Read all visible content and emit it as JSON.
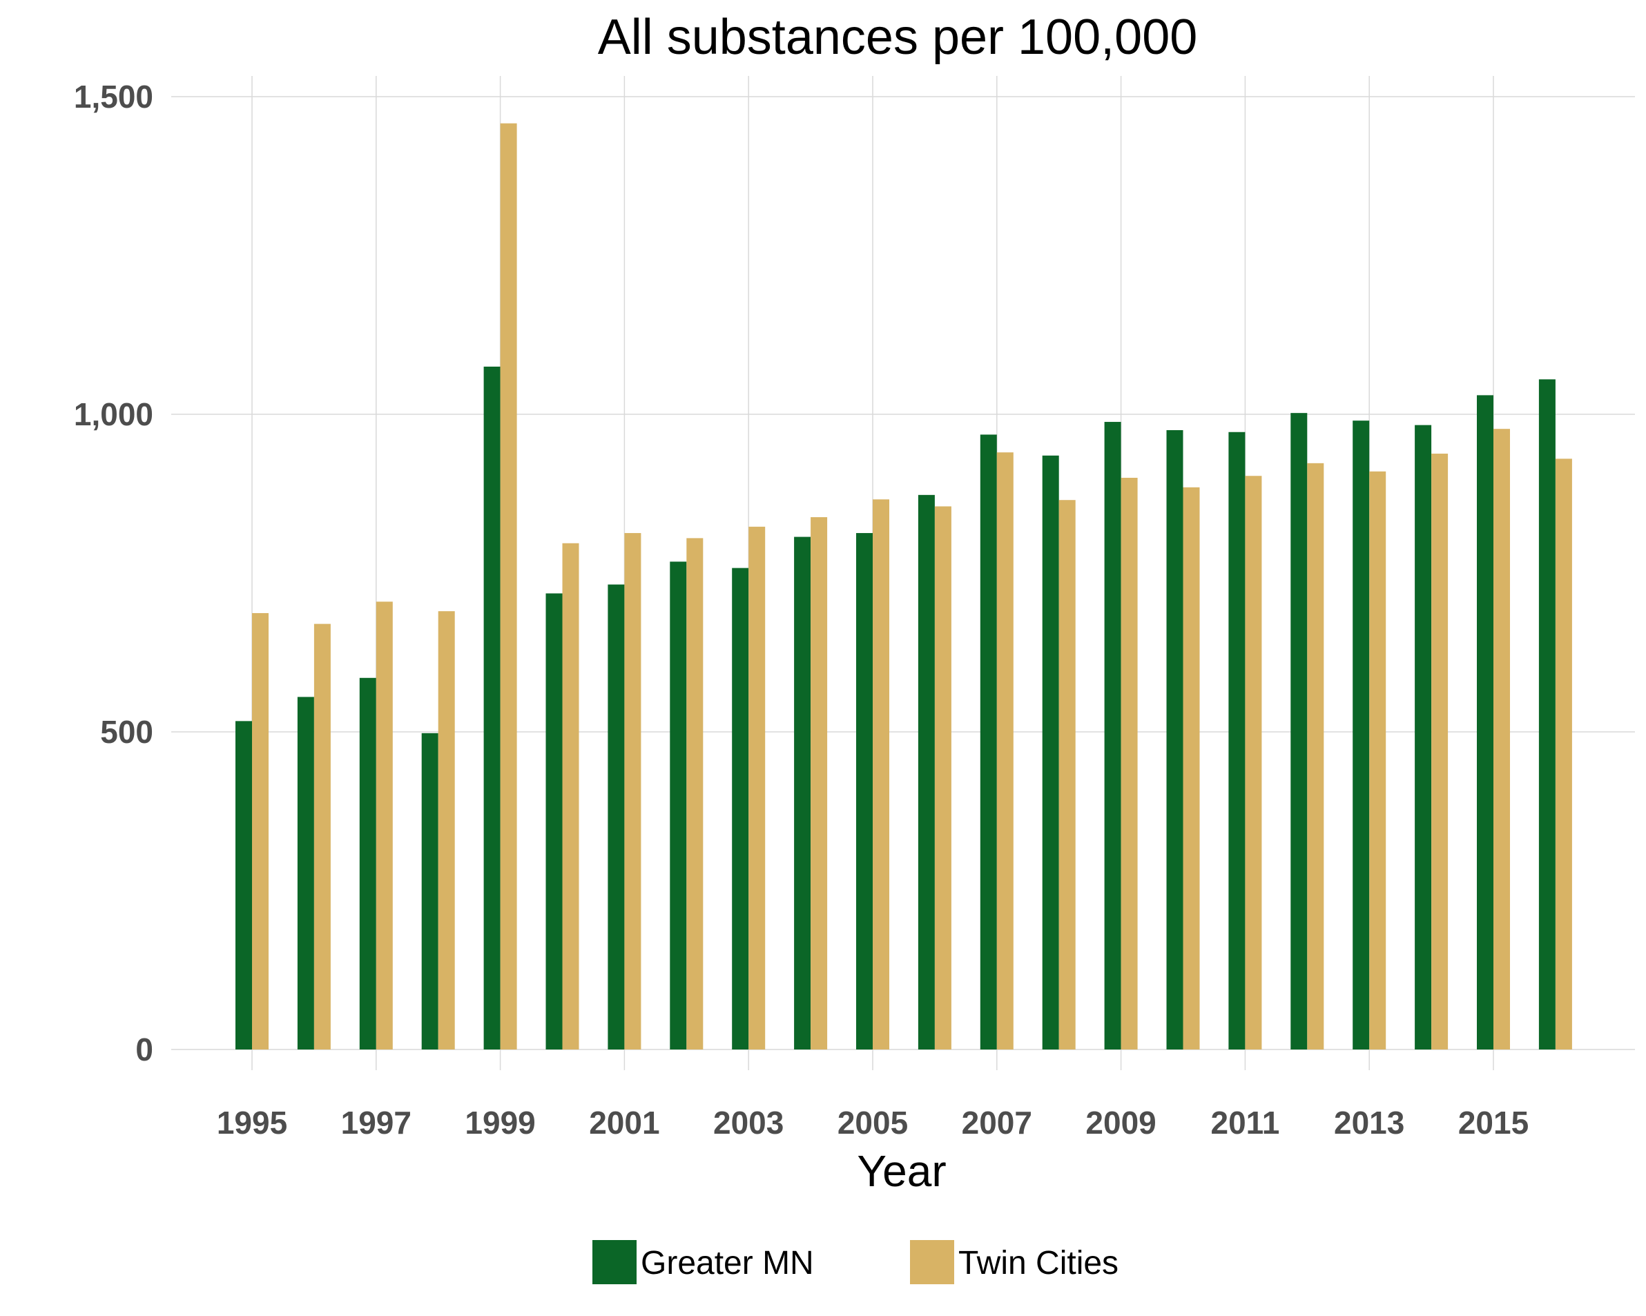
{
  "chart_data": {
    "type": "bar",
    "title": "All substances per 100,000",
    "xlabel": "Year",
    "ylabel": "",
    "ylim": [
      0,
      1500
    ],
    "yticks": [
      0,
      500,
      1000,
      1500
    ],
    "ytick_labels": [
      "0",
      "500",
      "1,000",
      "1,500"
    ],
    "categories": [
      "1995",
      "1996",
      "1997",
      "1998",
      "1999",
      "2000",
      "2001",
      "2002",
      "2003",
      "2004",
      "2005",
      "2006",
      "2007",
      "2008",
      "2009",
      "2010",
      "2011",
      "2012",
      "2013",
      "2014",
      "2015",
      "2016"
    ],
    "xtick_labels": [
      "1995",
      "1997",
      "1999",
      "2001",
      "2003",
      "2005",
      "2007",
      "2009",
      "2011",
      "2013",
      "2015"
    ],
    "series": [
      {
        "name": "Greater MN",
        "color": "#0b6627",
        "values": [
          517,
          555,
          585,
          498,
          1075,
          718,
          732,
          768,
          758,
          807,
          813,
          873,
          968,
          935,
          988,
          975,
          972,
          1002,
          990,
          983,
          1030,
          1055
        ]
      },
      {
        "name": "Twin Cities",
        "color": "#d8b365",
        "values": [
          687,
          670,
          705,
          690,
          1458,
          797,
          813,
          805,
          823,
          838,
          866,
          855,
          940,
          865,
          900,
          885,
          903,
          923,
          910,
          938,
          977,
          930
        ]
      }
    ],
    "grid": true,
    "legend_position": "bottom"
  }
}
